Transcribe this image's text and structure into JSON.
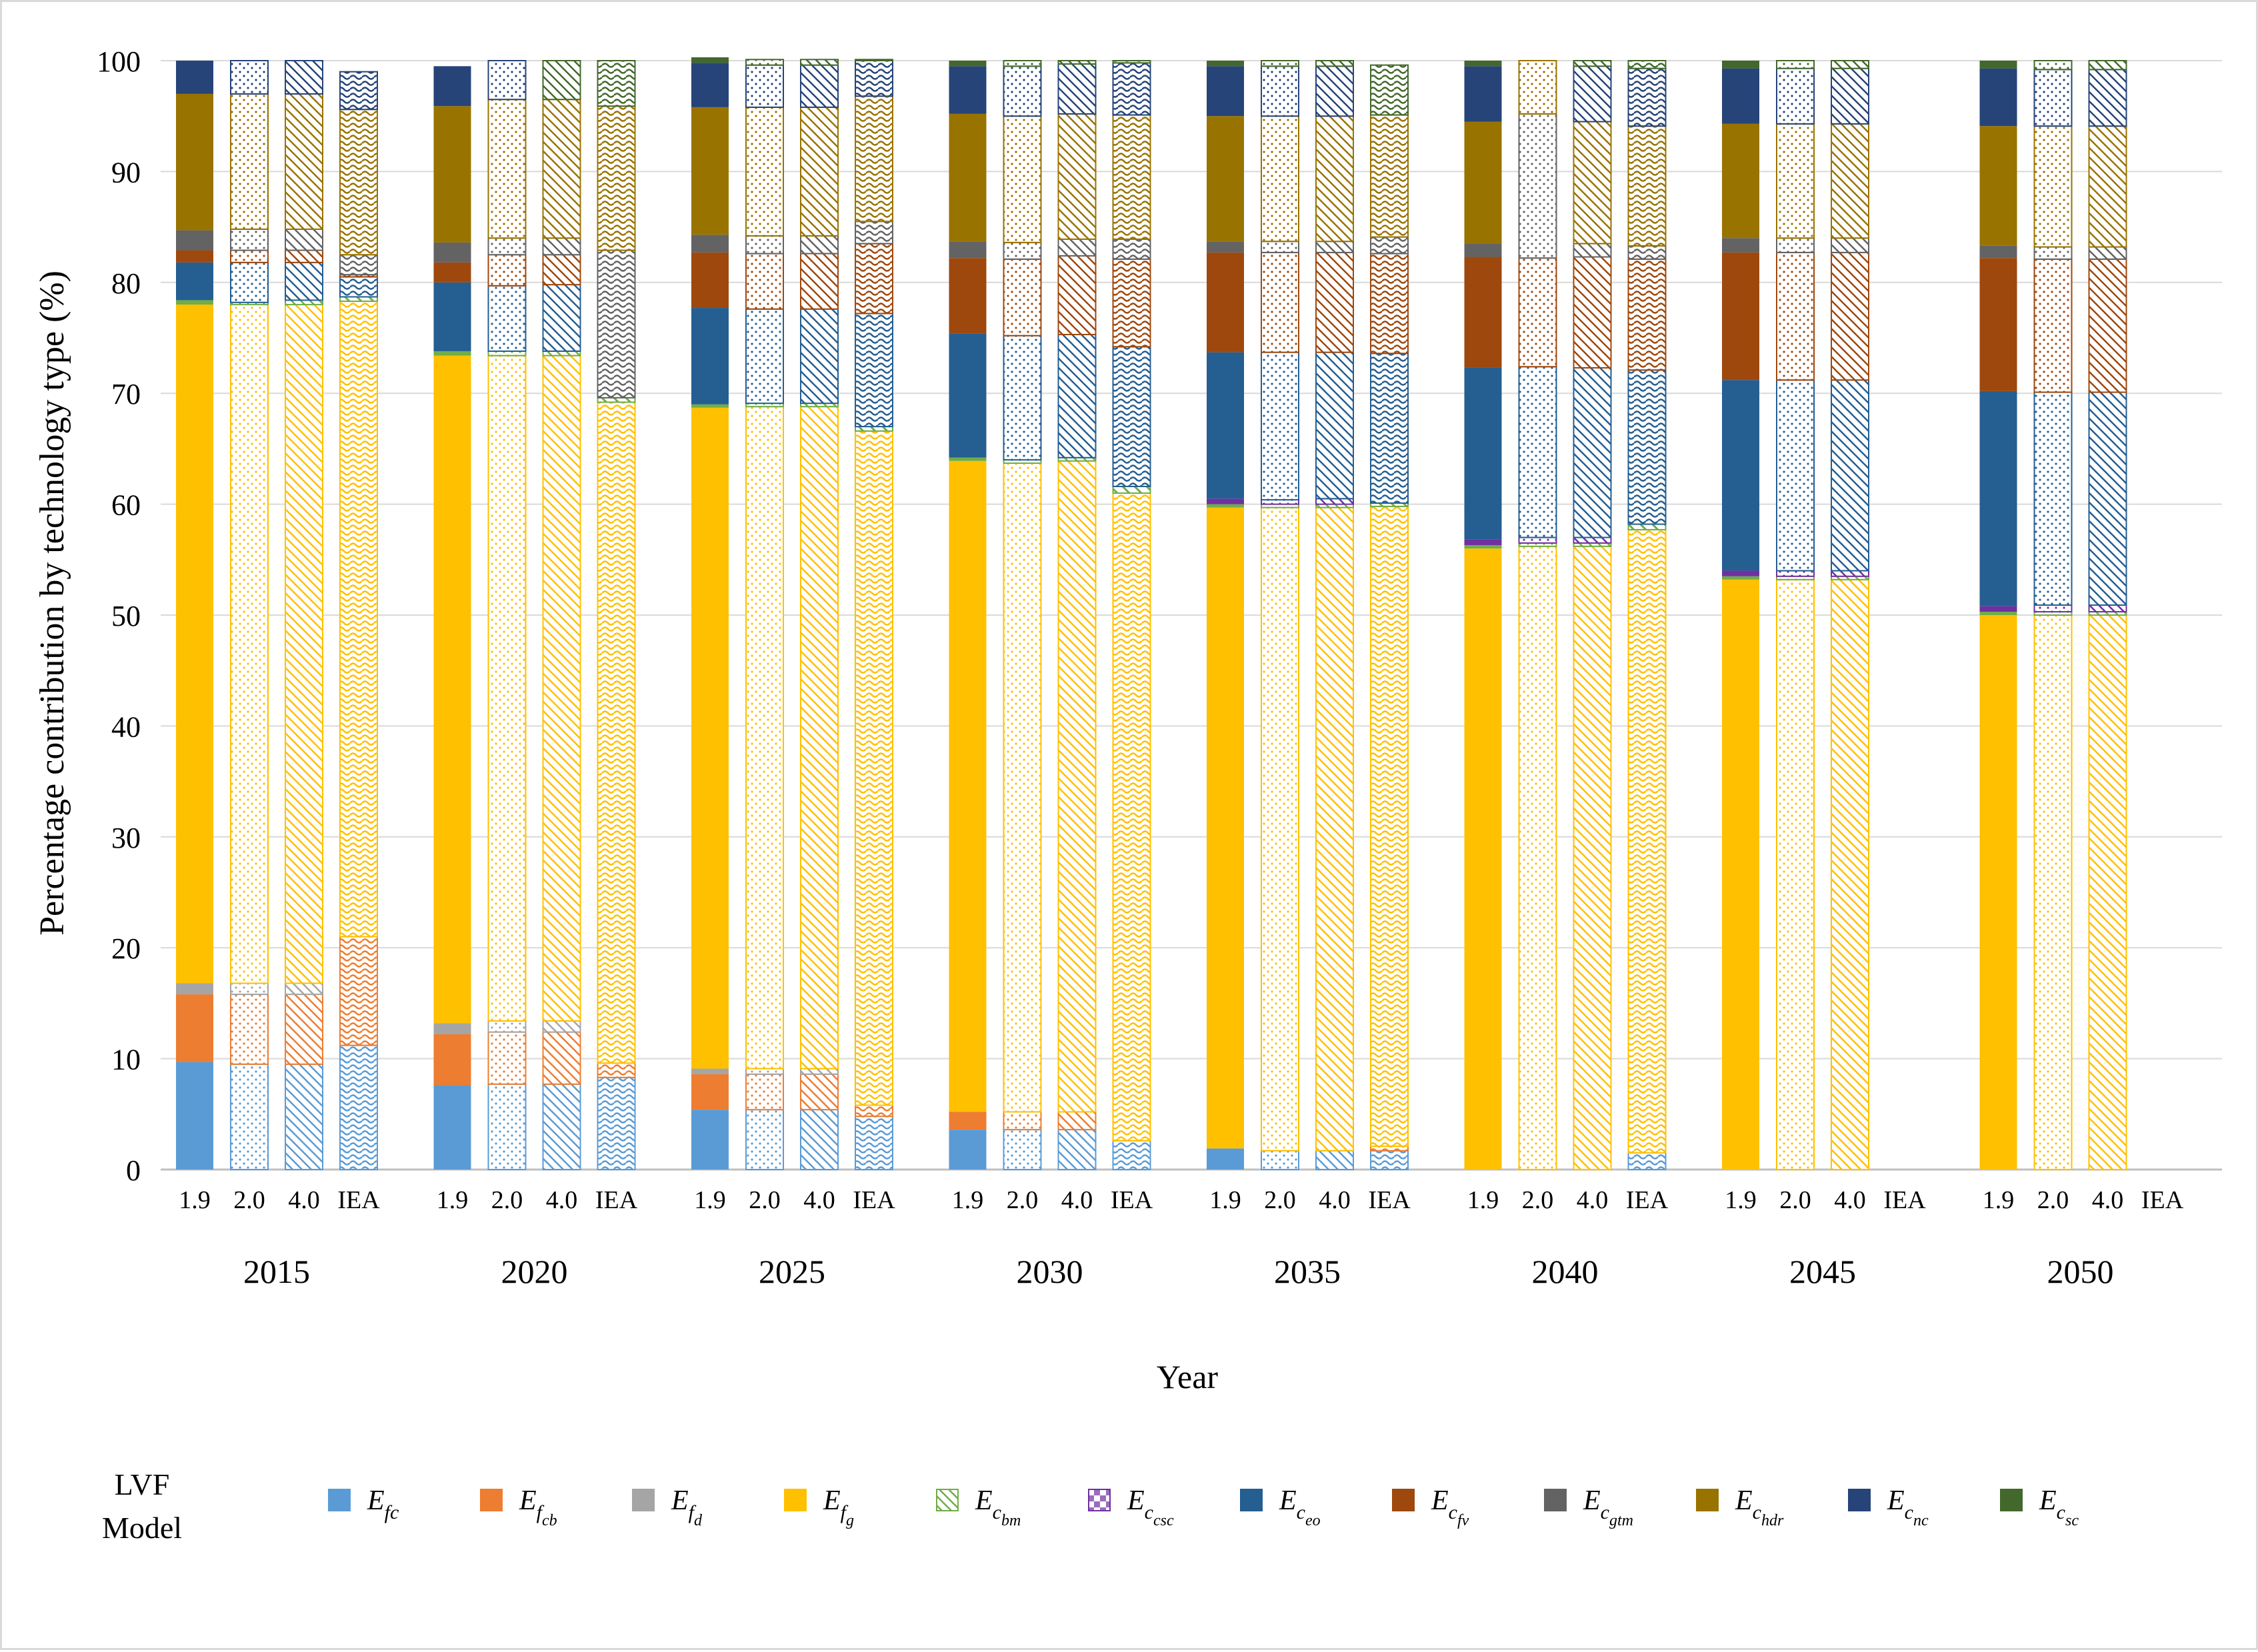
{
  "chart_data": {
    "type": "stacked-bar",
    "title": "",
    "xlabel": "Year",
    "ylabel": "Percentage contribution by technology type (%)",
    "ylim": [
      0,
      100
    ],
    "yticks": [
      0,
      10,
      20,
      30,
      40,
      50,
      60,
      70,
      80,
      90,
      100
    ],
    "grid": true,
    "legend_position": "bottom",
    "legend_title": [
      "LVF",
      "Model"
    ],
    "years": [
      "2015",
      "2020",
      "2025",
      "2030",
      "2035",
      "2040",
      "2045",
      "2050"
    ],
    "scenarios": [
      "1.9",
      "2.0",
      "4.0",
      "IEA"
    ],
    "technologies": [
      {
        "key": "Efc",
        "main": "E",
        "sub": "fc",
        "subsub": "",
        "color": "#5b9bd5",
        "pattern": "waves"
      },
      {
        "key": "Efcb",
        "main": "E",
        "sub": "f",
        "subsub": "cb",
        "color": "#ed7d31",
        "pattern": "waves"
      },
      {
        "key": "Efd",
        "main": "E",
        "sub": "f",
        "subsub": "d",
        "color": "#a5a5a5",
        "pattern": "waves"
      },
      {
        "key": "Efg",
        "main": "E",
        "sub": "f",
        "subsub": "g",
        "color": "#ffc000",
        "pattern": "waves"
      },
      {
        "key": "Ecbm",
        "main": "E",
        "sub": "c",
        "subsub": "bm",
        "color": "#70ad47",
        "pattern": "diag"
      },
      {
        "key": "Eccsc",
        "main": "E",
        "sub": "c",
        "subsub": "csc",
        "color": "#7030a0",
        "pattern": "checker"
      },
      {
        "key": "Eceo",
        "main": "E",
        "sub": "c",
        "subsub": "eo",
        "color": "#255e91",
        "pattern": "waves"
      },
      {
        "key": "Ecfv",
        "main": "E",
        "sub": "c",
        "subsub": "fv",
        "color": "#9e480e",
        "pattern": "waves"
      },
      {
        "key": "Ecgtm",
        "main": "E",
        "sub": "c",
        "subsub": "gtm",
        "color": "#636363",
        "pattern": "waves"
      },
      {
        "key": "Echdr",
        "main": "E",
        "sub": "c",
        "subsub": "hdr",
        "color": "#997300",
        "pattern": "waves"
      },
      {
        "key": "Ecnc",
        "main": "E",
        "sub": "c",
        "subsub": "nc",
        "color": "#264478",
        "pattern": "waves"
      },
      {
        "key": "Ecsc",
        "main": "E",
        "sub": "c",
        "subsub": "sc",
        "color": "#43682b",
        "pattern": "waves"
      }
    ],
    "bars": [
      {
        "year": "2015",
        "scenario": "1.9",
        "segments": {
          "Efc": 9.7,
          "Efcb": 6.1,
          "Efd": 1.0,
          "Efg": 61.2,
          "Ecbm": 0.4,
          "Eccsc": 0.0,
          "Eceo": 3.4,
          "Ecfv": 1.1,
          "Ecgtm": 1.8,
          "Echdr": 12.3,
          "Ecnc": 3.0,
          "Ecsc": 0.0
        }
      },
      {
        "year": "2015",
        "scenario": "2.0",
        "segments": {
          "Efc": 9.5,
          "Efcb": 6.3,
          "Efd": 1.0,
          "Efg": 61.2,
          "Ecbm": 0.2,
          "Eccsc": 0.0,
          "Eceo": 3.6,
          "Ecfv": 1.1,
          "Ecgtm": 1.9,
          "Echdr": 12.2,
          "Ecnc": 3.0,
          "Ecsc": 0.0
        }
      },
      {
        "year": "2015",
        "scenario": "4.0",
        "segments": {
          "Efc": 9.5,
          "Efcb": 6.3,
          "Efd": 1.0,
          "Efg": 61.2,
          "Ecbm": 0.4,
          "Eccsc": 0.0,
          "Eceo": 3.4,
          "Ecfv": 1.1,
          "Ecgtm": 1.9,
          "Echdr": 12.2,
          "Ecnc": 3.0,
          "Ecsc": 0.0
        }
      },
      {
        "year": "2015",
        "scenario": "IEA",
        "segments": {
          "Efc": 11.2,
          "Efcb": 9.8,
          "Efd": 0.0,
          "Efg": 57.3,
          "Ecbm": 0.4,
          "Eccsc": 0.0,
          "Eceo": 1.8,
          "Ecfv": 0.2,
          "Ecgtm": 1.8,
          "Echdr": 13.1,
          "Ecnc": 3.4,
          "Ecsc": 0.0
        }
      },
      {
        "year": "2020",
        "scenario": "1.9",
        "segments": {
          "Efc": 7.6,
          "Efcb": 4.6,
          "Efd": 1.0,
          "Efg": 60.2,
          "Ecbm": 0.4,
          "Eccsc": 0.0,
          "Eceo": 6.2,
          "Ecfv": 1.8,
          "Ecgtm": 1.8,
          "Echdr": 12.3,
          "Ecnc": 3.6,
          "Ecsc": 0.0
        }
      },
      {
        "year": "2020",
        "scenario": "2.0",
        "segments": {
          "Efc": 7.7,
          "Efcb": 4.7,
          "Efd": 1.0,
          "Efg": 60.0,
          "Ecbm": 0.4,
          "Eccsc": 0.0,
          "Eceo": 5.9,
          "Ecfv": 2.8,
          "Ecgtm": 1.5,
          "Echdr": 12.5,
          "Ecnc": 3.5,
          "Ecsc": 0.0
        }
      },
      {
        "year": "2020",
        "scenario": "4.0",
        "segments": {
          "Efc": 7.7,
          "Efcb": 4.7,
          "Efd": 1.0,
          "Efg": 60.0,
          "Ecbm": 0.4,
          "Eccsc": 0.0,
          "Eceo": 6.0,
          "Ecfv": 2.7,
          "Ecgtm": 1.5,
          "Echdr": 12.5,
          "Ecnc": 0.0,
          "Ecsc": 3.5
        }
      },
      {
        "year": "2020",
        "scenario": "IEA",
        "segments": {
          "Efc": 8.3,
          "Efcb": 1.3,
          "Efd": 0.0,
          "Efg": 59.6,
          "Ecbm": 0.4,
          "Eccsc": 0.0,
          "Eceo": 0.0,
          "Ecfv": 0.0,
          "Ecgtm": 13.3,
          "Echdr": 13.0,
          "Ecnc": 0.0,
          "Ecsc": 4.1
        }
      },
      {
        "year": "2025",
        "scenario": "1.9",
        "segments": {
          "Efc": 5.4,
          "Efcb": 3.2,
          "Efd": 0.5,
          "Efg": 59.6,
          "Ecbm": 0.3,
          "Eccsc": 0.0,
          "Eceo": 8.7,
          "Ecfv": 5.0,
          "Ecgtm": 1.6,
          "Echdr": 11.5,
          "Ecnc": 4.0,
          "Ecsc": 0.5
        }
      },
      {
        "year": "2025",
        "scenario": "2.0",
        "segments": {
          "Efc": 5.4,
          "Efcb": 3.2,
          "Efd": 0.5,
          "Efg": 59.7,
          "Ecbm": 0.3,
          "Eccsc": 0.0,
          "Eceo": 8.5,
          "Ecfv": 5.0,
          "Ecgtm": 1.6,
          "Echdr": 11.6,
          "Ecnc": 3.8,
          "Ecsc": 0.5
        }
      },
      {
        "year": "2025",
        "scenario": "4.0",
        "segments": {
          "Efc": 5.4,
          "Efcb": 3.2,
          "Efd": 0.5,
          "Efg": 59.7,
          "Ecbm": 0.3,
          "Eccsc": 0.0,
          "Eceo": 8.5,
          "Ecfv": 5.0,
          "Ecgtm": 1.6,
          "Echdr": 11.6,
          "Ecnc": 3.8,
          "Ecsc": 0.5
        }
      },
      {
        "year": "2025",
        "scenario": "IEA",
        "segments": {
          "Efc": 4.8,
          "Efcb": 1.0,
          "Efd": 0.0,
          "Efg": 60.8,
          "Ecbm": 0.4,
          "Eccsc": 0.0,
          "Eceo": 10.2,
          "Ecfv": 6.3,
          "Ecgtm": 2.0,
          "Echdr": 11.3,
          "Ecnc": 3.2,
          "Ecsc": 0.1
        }
      },
      {
        "year": "2030",
        "scenario": "1.9",
        "segments": {
          "Efc": 3.6,
          "Efcb": 1.6,
          "Efd": 0.0,
          "Efg": 58.7,
          "Ecbm": 0.3,
          "Eccsc": 0.0,
          "Eceo": 11.2,
          "Ecfv": 6.8,
          "Ecgtm": 1.5,
          "Echdr": 11.5,
          "Ecnc": 4.3,
          "Ecsc": 0.5
        }
      },
      {
        "year": "2030",
        "scenario": "2.0",
        "segments": {
          "Efc": 3.6,
          "Efcb": 1.6,
          "Efd": 0.0,
          "Efg": 58.5,
          "Ecbm": 0.3,
          "Eccsc": 0.0,
          "Eceo": 11.2,
          "Ecfv": 6.9,
          "Ecgtm": 1.5,
          "Echdr": 11.4,
          "Ecnc": 4.5,
          "Ecsc": 0.5
        }
      },
      {
        "year": "2030",
        "scenario": "4.0",
        "segments": {
          "Efc": 3.6,
          "Efcb": 1.6,
          "Efd": 0.0,
          "Efg": 58.7,
          "Ecbm": 0.3,
          "Eccsc": 0.0,
          "Eceo": 11.1,
          "Ecfv": 7.1,
          "Ecgtm": 1.5,
          "Echdr": 11.3,
          "Ecnc": 4.5,
          "Ecsc": 0.3
        }
      },
      {
        "year": "2030",
        "scenario": "IEA",
        "segments": {
          "Efc": 2.6,
          "Efcb": 0.0,
          "Efd": 0.0,
          "Efg": 58.4,
          "Ecbm": 0.6,
          "Eccsc": 0.0,
          "Eceo": 12.6,
          "Ecfv": 7.9,
          "Ecgtm": 1.8,
          "Echdr": 11.2,
          "Ecnc": 4.7,
          "Ecsc": 0.2
        }
      },
      {
        "year": "2035",
        "scenario": "1.9",
        "segments": {
          "Efc": 1.9,
          "Efcb": 0.0,
          "Efd": 0.0,
          "Efg": 57.8,
          "Ecbm": 0.3,
          "Eccsc": 0.5,
          "Eceo": 13.2,
          "Ecfv": 9.0,
          "Ecgtm": 1.0,
          "Echdr": 11.3,
          "Ecnc": 4.5,
          "Ecsc": 0.5
        }
      },
      {
        "year": "2035",
        "scenario": "2.0",
        "segments": {
          "Efc": 1.7,
          "Efcb": 0.0,
          "Efd": 0.0,
          "Efg": 58.0,
          "Ecbm": 0.3,
          "Eccsc": 0.4,
          "Eceo": 13.3,
          "Ecfv": 9.0,
          "Ecgtm": 1.0,
          "Echdr": 11.3,
          "Ecnc": 4.5,
          "Ecsc": 0.5
        }
      },
      {
        "year": "2035",
        "scenario": "4.0",
        "segments": {
          "Efc": 1.7,
          "Efcb": 0.0,
          "Efd": 0.0,
          "Efg": 58.0,
          "Ecbm": 0.3,
          "Eccsc": 0.5,
          "Eceo": 13.2,
          "Ecfv": 9.0,
          "Ecgtm": 1.0,
          "Echdr": 11.3,
          "Ecnc": 4.5,
          "Ecsc": 0.5
        }
      },
      {
        "year": "2035",
        "scenario": "IEA",
        "segments": {
          "Efc": 1.7,
          "Efcb": 0.4,
          "Efd": 0.0,
          "Efg": 57.7,
          "Ecbm": 0.3,
          "Eccsc": 0.0,
          "Eceo": 13.5,
          "Ecfv": 9.0,
          "Ecgtm": 1.5,
          "Echdr": 11.0,
          "Ecnc": 0.0,
          "Ecsc": 4.5
        }
      },
      {
        "year": "2040",
        "scenario": "1.9",
        "segments": {
          "Efc": 0.0,
          "Efcb": 0.0,
          "Efd": 0.0,
          "Efg": 56.0,
          "Ecbm": 0.3,
          "Eccsc": 0.5,
          "Eceo": 15.5,
          "Ecfv": 10.0,
          "Ecgtm": 1.2,
          "Echdr": 11.0,
          "Ecnc": 5.0,
          "Ecsc": 0.5
        }
      },
      {
        "year": "2040",
        "scenario": "2.0",
        "segments": {
          "Efc": 0.0,
          "Efcb": 0.0,
          "Efd": 0.0,
          "Efg": 56.2,
          "Ecbm": 0.3,
          "Eccsc": 0.5,
          "Eceo": 15.4,
          "Ecfv": 9.8,
          "Ecgtm": 13.0,
          "Echdr": 4.8,
          "Ecnc": 0.0,
          "Ecsc": 0.0
        }
      },
      {
        "year": "2040",
        "scenario": "4.0",
        "segments": {
          "Efc": 0.0,
          "Efcb": 0.0,
          "Efd": 0.0,
          "Efg": 56.2,
          "Ecbm": 0.3,
          "Eccsc": 0.5,
          "Eceo": 15.3,
          "Ecfv": 10.0,
          "Ecgtm": 1.2,
          "Echdr": 11.0,
          "Ecnc": 5.0,
          "Ecsc": 0.5
        }
      },
      {
        "year": "2040",
        "scenario": "IEA",
        "segments": {
          "Efc": 1.5,
          "Efcb": 0.0,
          "Efd": 0.0,
          "Efg": 56.2,
          "Ecbm": 0.5,
          "Eccsc": 0.0,
          "Eceo": 13.9,
          "Ecfv": 10.0,
          "Ecgtm": 1.2,
          "Echdr": 10.8,
          "Ecnc": 5.2,
          "Ecsc": 0.7
        }
      },
      {
        "year": "2045",
        "scenario": "1.9",
        "segments": {
          "Efc": 0.0,
          "Efcb": 0.0,
          "Efd": 0.0,
          "Efg": 53.2,
          "Ecbm": 0.3,
          "Eccsc": 0.5,
          "Eceo": 17.2,
          "Ecfv": 11.5,
          "Ecgtm": 1.3,
          "Echdr": 10.3,
          "Ecnc": 5.0,
          "Ecsc": 0.7
        }
      },
      {
        "year": "2045",
        "scenario": "2.0",
        "segments": {
          "Efc": 0.0,
          "Efcb": 0.0,
          "Efd": 0.0,
          "Efg": 53.2,
          "Ecbm": 0.3,
          "Eccsc": 0.5,
          "Eceo": 17.2,
          "Ecfv": 11.5,
          "Ecgtm": 1.3,
          "Echdr": 10.3,
          "Ecnc": 5.0,
          "Ecsc": 0.7
        }
      },
      {
        "year": "2045",
        "scenario": "4.0",
        "segments": {
          "Efc": 0.0,
          "Efcb": 0.0,
          "Efd": 0.0,
          "Efg": 53.2,
          "Ecbm": 0.3,
          "Eccsc": 0.5,
          "Eceo": 17.2,
          "Ecfv": 11.5,
          "Ecgtm": 1.3,
          "Echdr": 10.3,
          "Ecnc": 5.0,
          "Ecsc": 0.7
        }
      },
      {
        "year": "2050",
        "scenario": "1.9",
        "segments": {
          "Efc": 0.0,
          "Efcb": 0.0,
          "Efd": 0.0,
          "Efg": 50.0,
          "Ecbm": 0.3,
          "Eccsc": 0.5,
          "Eceo": 19.4,
          "Ecfv": 12.0,
          "Ecgtm": 1.1,
          "Echdr": 10.8,
          "Ecnc": 5.2,
          "Ecsc": 0.7
        }
      },
      {
        "year": "2050",
        "scenario": "2.0",
        "segments": {
          "Efc": 0.0,
          "Efcb": 0.0,
          "Efd": 0.0,
          "Efg": 50.0,
          "Ecbm": 0.3,
          "Eccsc": 0.6,
          "Eceo": 19.2,
          "Ecfv": 12.0,
          "Ecgtm": 1.1,
          "Echdr": 10.9,
          "Ecnc": 5.1,
          "Ecsc": 0.8
        }
      },
      {
        "year": "2050",
        "scenario": "4.0",
        "segments": {
          "Efc": 0.0,
          "Efcb": 0.0,
          "Efd": 0.0,
          "Efg": 50.0,
          "Ecbm": 0.3,
          "Eccsc": 0.6,
          "Eceo": 19.2,
          "Ecfv": 12.0,
          "Ecgtm": 1.1,
          "Echdr": 10.9,
          "Ecnc": 5.1,
          "Ecsc": 0.8
        }
      }
    ]
  }
}
